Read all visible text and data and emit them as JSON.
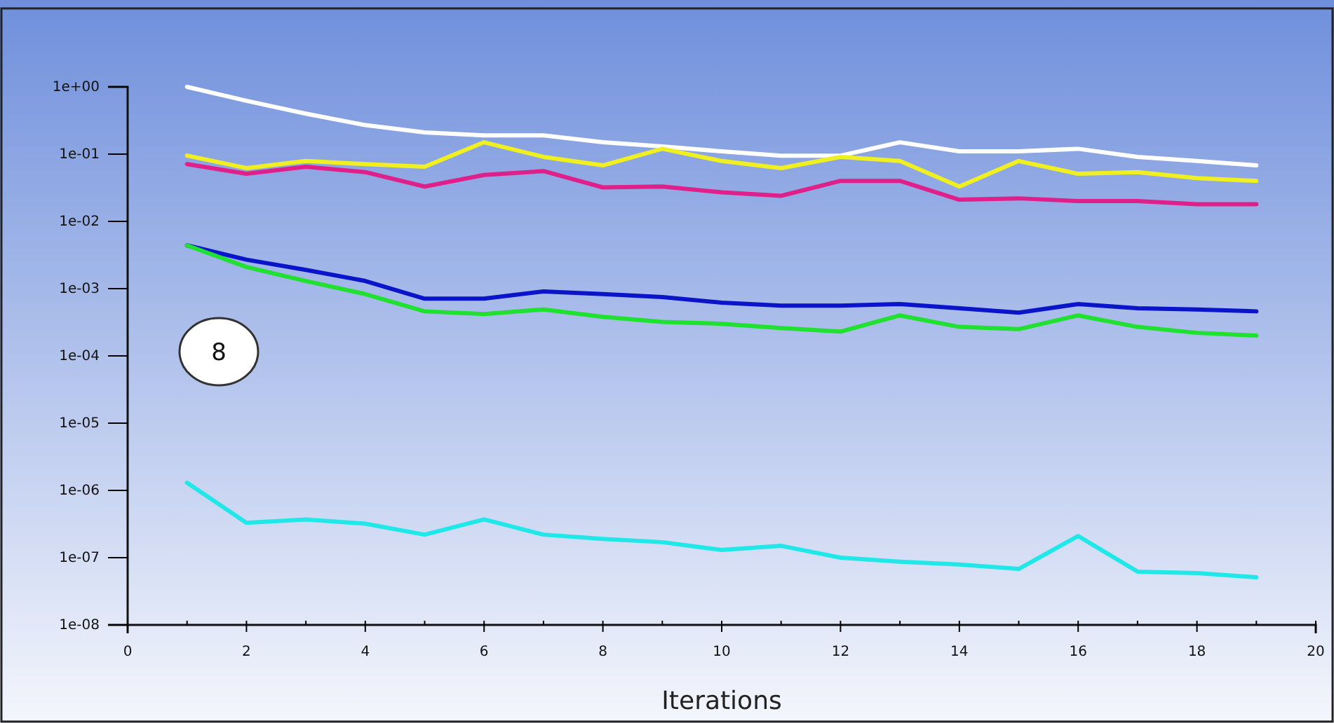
{
  "chart_data": {
    "type": "line",
    "xlabel": "Iterations",
    "log": "y",
    "grid": false,
    "marker": "none",
    "line_style": "solid",
    "x": [
      1,
      2,
      3,
      4,
      5,
      6,
      7,
      8,
      9,
      10,
      11,
      12,
      13,
      14,
      15,
      16,
      17,
      18,
      19
    ],
    "xlim": [
      0,
      20
    ],
    "xticks": [
      0,
      {
        "value": 1,
        "label": null
      },
      2,
      {
        "value": 3,
        "label": null
      },
      4,
      {
        "value": 5,
        "label": null
      },
      6,
      {
        "value": 7,
        "label": null
      },
      8,
      {
        "value": 9,
        "label": null
      },
      10,
      {
        "value": 11,
        "label": null
      },
      12,
      {
        "value": 13,
        "label": null
      },
      14,
      {
        "value": 15,
        "label": null
      },
      16,
      {
        "value": 17,
        "label": null
      },
      18,
      {
        "value": 19,
        "label": null
      },
      20
    ],
    "ylim": [
      1e-08,
      1
    ],
    "yticks": [
      {
        "value": 1,
        "label": "1e+00"
      },
      {
        "value": 0.1,
        "label": "1e-01"
      },
      {
        "value": 0.01,
        "label": "1e-02"
      },
      {
        "value": 0.001,
        "label": "1e-03"
      },
      {
        "value": 0.0001,
        "label": "1e-04"
      },
      {
        "value": 1e-05,
        "label": "1e-05"
      },
      {
        "value": 1e-06,
        "label": "1e-06"
      },
      {
        "value": 1e-07,
        "label": "1e-07"
      },
      {
        "value": 1e-08,
        "label": "1e-08"
      }
    ],
    "series": [
      {
        "color": "#ffffff",
        "values": [
          1.0,
          0.62,
          0.4,
          0.27,
          0.21,
          0.19,
          0.19,
          0.15,
          0.13,
          0.11,
          0.095,
          0.095,
          0.15,
          0.11,
          0.11,
          0.12,
          0.091,
          0.079,
          0.068
        ]
      },
      {
        "color": "#f0f020",
        "values": [
          0.095,
          0.062,
          0.079,
          0.071,
          0.065,
          0.15,
          0.091,
          0.068,
          0.12,
          0.079,
          0.062,
          0.091,
          0.079,
          0.033,
          0.079,
          0.051,
          0.054,
          0.044,
          0.04
        ]
      },
      {
        "color": "#e0208a",
        "values": [
          0.071,
          0.051,
          0.065,
          0.054,
          0.033,
          0.049,
          0.056,
          0.032,
          0.033,
          0.027,
          0.024,
          0.04,
          0.04,
          0.021,
          0.022,
          0.02,
          0.02,
          0.018,
          0.018
        ]
      },
      {
        "color": "#0a14c8",
        "values": [
          0.0044,
          0.0027,
          0.0019,
          0.0013,
          0.00071,
          0.00071,
          0.00091,
          0.00083,
          0.00075,
          0.00062,
          0.00056,
          0.00056,
          0.00059,
          0.00051,
          0.00044,
          0.00059,
          0.00051,
          0.00049,
          0.00046
        ]
      },
      {
        "color": "#20e030",
        "values": [
          0.0044,
          0.0021,
          0.0013,
          0.00083,
          0.00046,
          0.00042,
          0.00049,
          0.00038,
          0.00032,
          0.0003,
          0.00026,
          0.00023,
          0.0004,
          0.00027,
          0.00025,
          0.0004,
          0.00027,
          0.00022,
          0.0002
        ]
      },
      {
        "color": "#20e8e8",
        "values": [
          1.3e-06,
          3.3e-07,
          3.7e-07,
          3.2e-07,
          2.2e-07,
          3.7e-07,
          2.2e-07,
          1.9e-07,
          1.7e-07,
          1.3e-07,
          1.5e-07,
          1e-07,
          8.7e-08,
          7.9e-08,
          6.8e-08,
          2.1e-07,
          6.2e-08,
          5.9e-08,
          5.1e-08
        ]
      }
    ],
    "annotations": [
      "8"
    ]
  }
}
